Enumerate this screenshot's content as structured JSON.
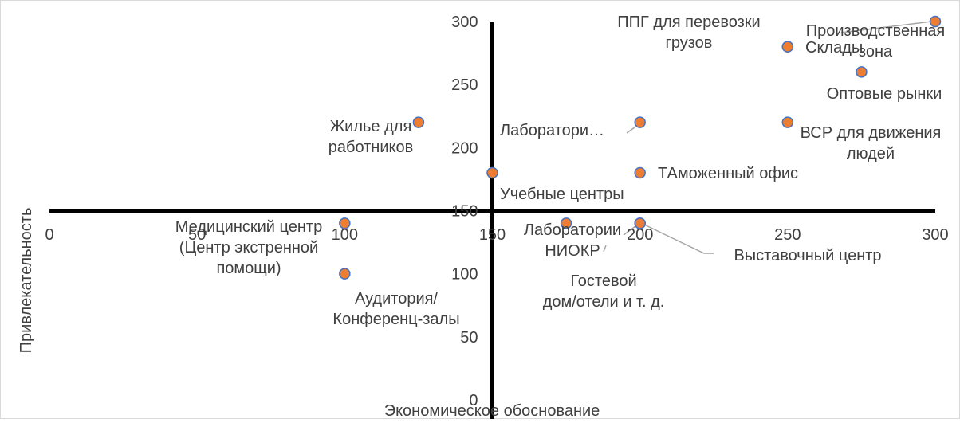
{
  "chart_data": {
    "type": "scatter",
    "title": "",
    "xlabel": "Экономическое обоснование",
    "ylabel": "Привлекательность",
    "xlim": [
      0,
      300
    ],
    "ylim": [
      0,
      300
    ],
    "x_ticks": [
      "0",
      "50",
      "100",
      "150",
      "200",
      "250",
      "300"
    ],
    "y_ticks": [
      "0",
      "50",
      "100",
      "150",
      "200",
      "250",
      "300"
    ],
    "grid": false,
    "marker_color": "#ED7D31",
    "marker_edge_color": "#4472C4",
    "quadrant_line_color": "#000000",
    "points": [
      {
        "x": 300,
        "y": 300,
        "label": "Производственная зона"
      },
      {
        "x": 250,
        "y": 280,
        "label": "Склады"
      },
      {
        "x": 250,
        "y": 280,
        "label": "ППГ для перевозки грузов"
      },
      {
        "x": 275,
        "y": 260,
        "label": "Оптовые рынки"
      },
      {
        "x": 250,
        "y": 220,
        "label": "ВСР для  движения людей"
      },
      {
        "x": 125,
        "y": 220,
        "label": "Жилье для работников"
      },
      {
        "x": 200,
        "y": 220,
        "label": "Лаборатори…"
      },
      {
        "x": 200,
        "y": 180,
        "label": "ТАможенный офис"
      },
      {
        "x": 150,
        "y": 180,
        "label": "Учебные центры"
      },
      {
        "x": 100,
        "y": 140,
        "label": "Медицинский центр (Центр экстренной помощи)"
      },
      {
        "x": 175,
        "y": 140,
        "label": "Лаборатории НИОКР"
      },
      {
        "x": 200,
        "y": 140,
        "label": "Выставочный центр"
      },
      {
        "x": 200,
        "y": 140,
        "label": "Гостевой дом/отели и т. д."
      },
      {
        "x": 100,
        "y": 100,
        "label": "Аудитория/ Конференц-залы"
      }
    ]
  }
}
